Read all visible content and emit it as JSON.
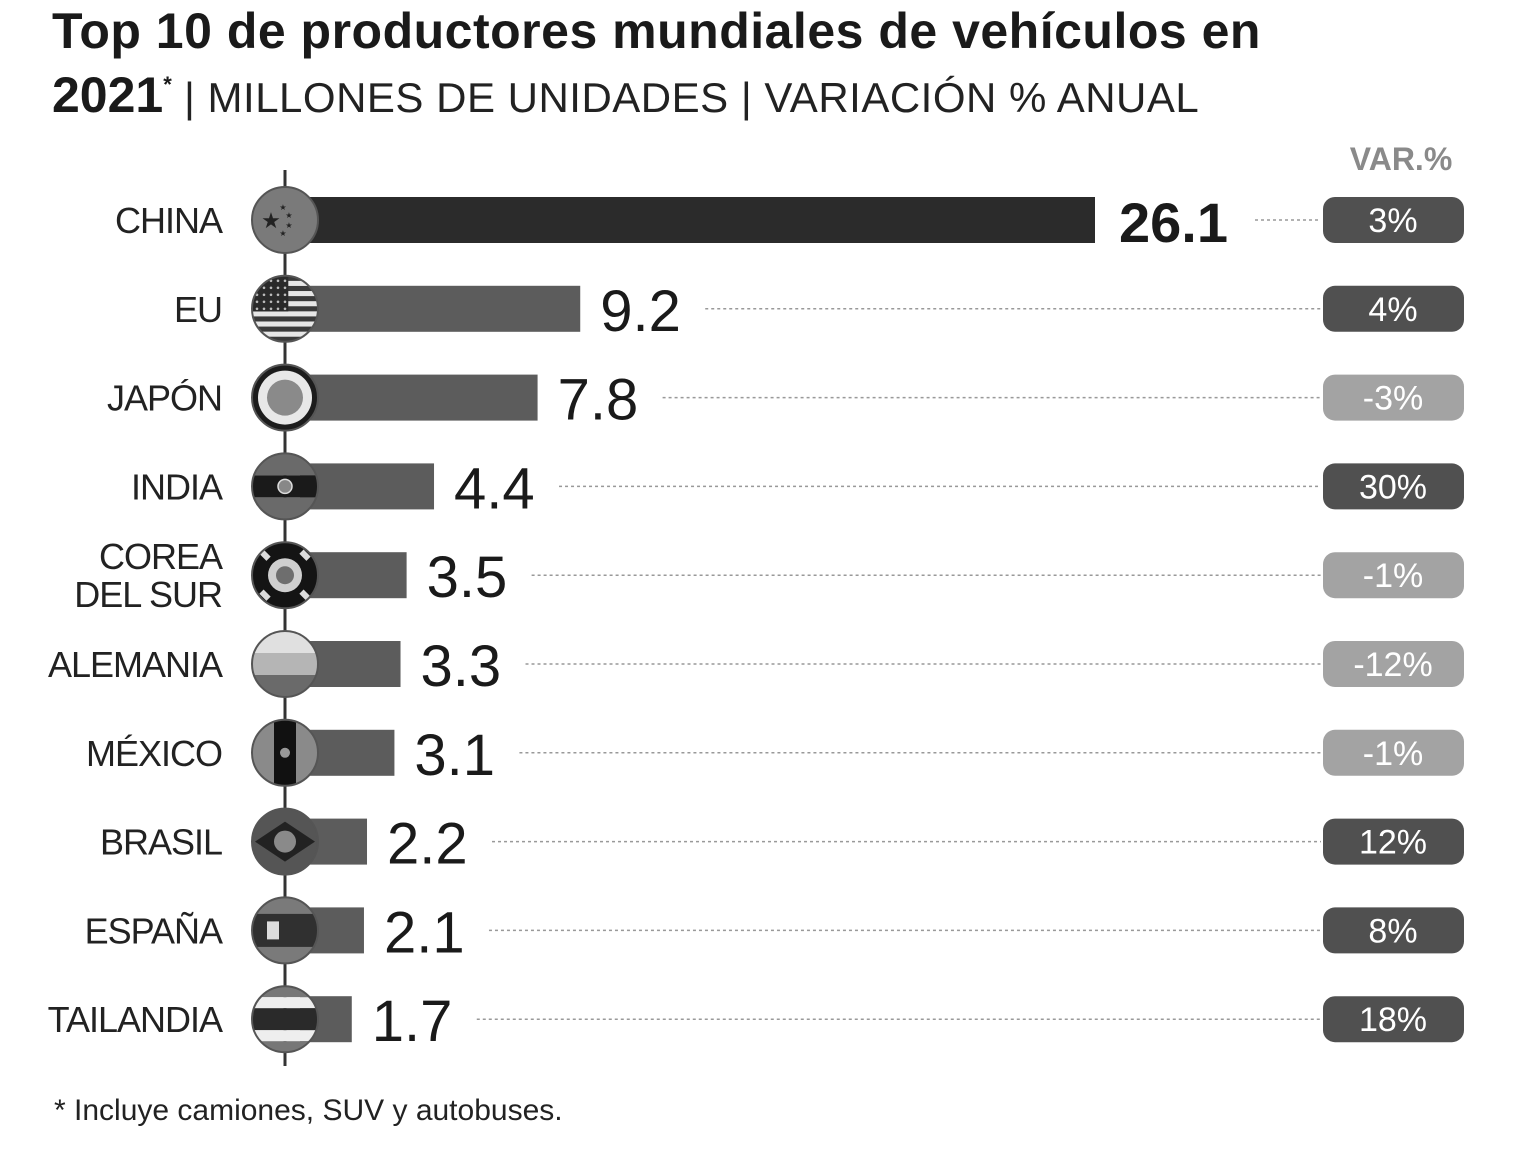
{
  "title": {
    "line1": "Top 10 de productores mundiales de vehículos en",
    "year": "2021",
    "asterisk": "*",
    "subtitle": " | MILLONES DE UNIDADES | VARIACIÓN % ANUAL"
  },
  "var_header": "VAR.%",
  "footnote": "* Incluye camiones, SUV y autobuses.",
  "chart_data": {
    "type": "bar",
    "orientation": "horizontal",
    "unit": "millones de unidades",
    "xlim": [
      0,
      26.1
    ],
    "categories": [
      "CHINA",
      "EU",
      "JAPÓN",
      "INDIA",
      "COREA DEL SUR",
      "ALEMANIA",
      "MÉXICO",
      "BRASIL",
      "ESPAÑA",
      "TAILANDIA"
    ],
    "values": [
      26.1,
      9.2,
      7.8,
      4.4,
      3.5,
      3.3,
      3.1,
      2.2,
      2.1,
      1.7
    ],
    "value_labels": [
      "26.1",
      "9.2",
      "7.8",
      "4.4",
      "3.5",
      "3.3",
      "3.1",
      "2.2",
      "2.1",
      "1.7"
    ],
    "variation": [
      "3%",
      "4%",
      "-3%",
      "30%",
      "-1%",
      "-12%",
      "-1%",
      "12%",
      "8%",
      "18%"
    ],
    "flag_icons": [
      "china-flag-icon",
      "usa-flag-icon",
      "japan-flag-icon",
      "india-flag-icon",
      "south-korea-flag-icon",
      "germany-flag-icon",
      "mexico-flag-icon",
      "brazil-flag-icon",
      "spain-flag-icon",
      "thailand-flag-icon"
    ],
    "colors": {
      "top_bar": "#2b2b2b",
      "bar": "#5c5c5c",
      "badge_dark": "#505050",
      "badge_light": "#a3a3a3",
      "badge_text": "#ffffff",
      "dots": "#999999"
    }
  }
}
